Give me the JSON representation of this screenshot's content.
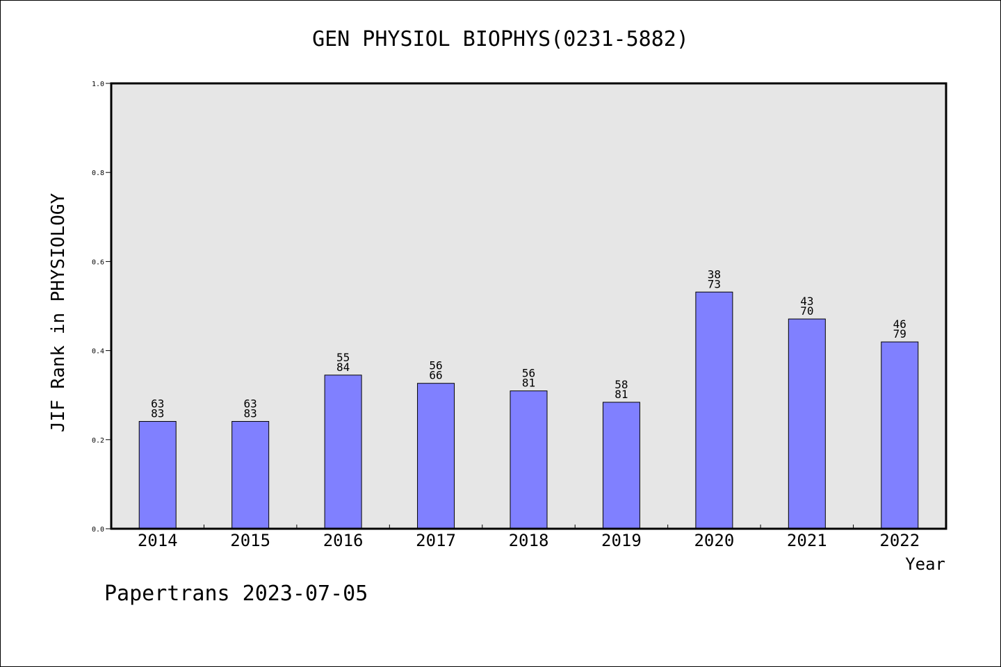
{
  "chart_data": {
    "type": "bar",
    "title": "GEN PHYSIOL BIOPHYS(0231-5882)",
    "xlabel": "Year",
    "ylabel": "JIF Rank in PHYSIOLOGY",
    "ylim": [
      0,
      1.0
    ],
    "yticks": [
      "0.0",
      "0.2",
      "0.4",
      "0.6",
      "0.8",
      "1.0"
    ],
    "grid": false,
    "categories": [
      "2014",
      "2015",
      "2016",
      "2017",
      "2018",
      "2019",
      "2020",
      "2021",
      "2022"
    ],
    "values": [
      0.241,
      0.241,
      0.345,
      0.3265,
      0.3095,
      0.284,
      0.5315,
      0.471,
      0.4195
    ],
    "rank": [
      "63",
      "63",
      "55",
      "56",
      "56",
      "58",
      "38",
      "43",
      "46"
    ],
    "total": [
      "83",
      "83",
      "84",
      "66",
      "81",
      "81",
      "73",
      "70",
      "79"
    ],
    "colors": {
      "bar": "#8080ff",
      "plot_bg": "#e6e6e6"
    }
  },
  "footer": "Papertrans 2023-07-05"
}
